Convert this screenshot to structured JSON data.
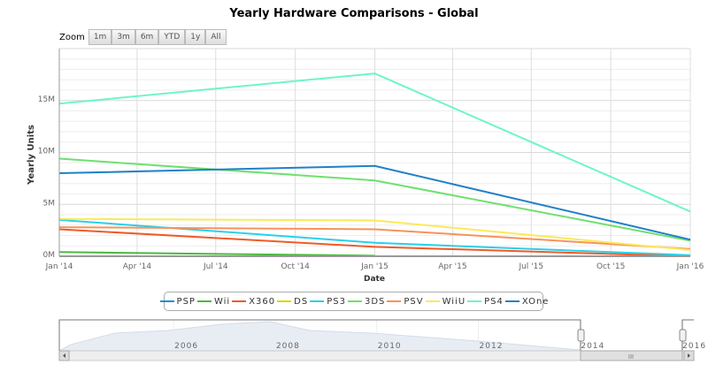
{
  "chart_data": {
    "type": "line",
    "title": "Yearly Hardware Comparisons - Global",
    "xlabel": "Date",
    "ylabel": "Yearly Units",
    "x": [
      "2014-01-01",
      "2015-01-01",
      "2016-01-01"
    ],
    "x_ticks": [
      "Jan '14",
      "Apr '14",
      "Jul '14",
      "Oct '14",
      "Jan '15",
      "Apr '15",
      "Jul '15",
      "Oct '15",
      "Jan '16"
    ],
    "y_ticks": [
      "0M",
      "5M",
      "10M",
      "15M"
    ],
    "ylim": [
      0,
      20000000
    ],
    "grid": true,
    "legend_position": "bottom",
    "series": [
      {
        "name": "PSP",
        "color": "#1f8fd0",
        "values": [
          null,
          null,
          null
        ]
      },
      {
        "name": "Wii",
        "color": "#4cb840",
        "values": [
          400000,
          50000,
          null
        ]
      },
      {
        "name": "X360",
        "color": "#f05a28",
        "values": [
          2600000,
          900000,
          0
        ]
      },
      {
        "name": "DS",
        "color": "#d8d800",
        "values": [
          null,
          null,
          null
        ]
      },
      {
        "name": "PS3",
        "color": "#2ad0e8",
        "values": [
          3500000,
          1300000,
          100000
        ]
      },
      {
        "name": "3DS",
        "color": "#6ee06e",
        "values": [
          9400000,
          7300000,
          1500000
        ]
      },
      {
        "name": "PSV",
        "color": "#f8925a",
        "values": [
          2800000,
          2600000,
          700000
        ]
      },
      {
        "name": "WiiU",
        "color": "#fbe95a",
        "values": [
          3600000,
          3450000,
          600000
        ]
      },
      {
        "name": "PS4",
        "color": "#6ff5c8",
        "values": [
          14700000,
          17600000,
          4300000
        ]
      },
      {
        "name": "XOne",
        "color": "#1f80c8",
        "values": [
          8000000,
          8700000,
          1600000
        ]
      }
    ]
  },
  "zoom": {
    "label": "Zoom",
    "buttons": [
      "1m",
      "3m",
      "6m",
      "YTD",
      "1y",
      "All"
    ]
  },
  "navigator": {
    "years": [
      "2006",
      "2008",
      "2010",
      "2012",
      "2014",
      "2016"
    ],
    "selected_range": [
      "2014",
      "2016"
    ]
  },
  "scrollbar": {
    "grip": "III"
  }
}
